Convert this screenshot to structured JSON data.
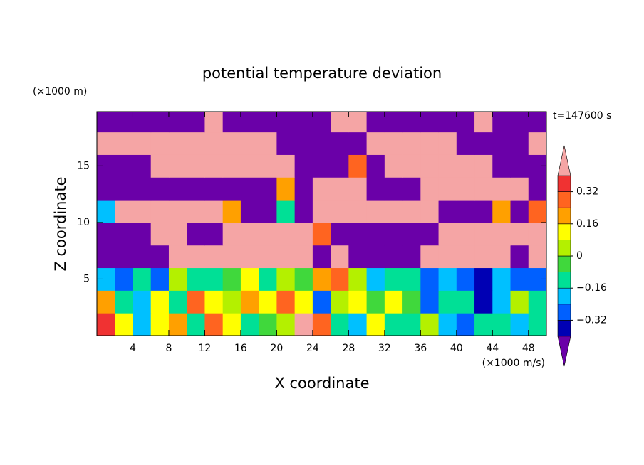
{
  "chart_data": {
    "type": "contour",
    "title": "potential temperature deviation",
    "y_unit": "(×1000 m)",
    "ylabel": "Z coordinate",
    "xlabel": "X coordinate",
    "x_unit": "(×1000 m/s)",
    "annotation": "t=147600 s",
    "xlim": [
      0,
      50
    ],
    "ylim": [
      0,
      19.8
    ],
    "xticks": [
      4,
      8,
      12,
      16,
      20,
      24,
      28,
      32,
      36,
      40,
      44,
      48
    ],
    "yticks": [
      5,
      10,
      15
    ],
    "x": [
      1,
      3,
      5,
      7,
      9,
      11,
      13,
      15,
      17,
      19,
      21,
      23,
      25,
      27,
      29,
      31,
      33,
      35,
      37,
      39,
      41,
      43,
      45,
      47,
      49
    ],
    "y": [
      1,
      3,
      5,
      7,
      9,
      11,
      13,
      15,
      17,
      19
    ],
    "z": [
      [
        0.35,
        0.1,
        -0.2,
        0.1,
        0.2,
        -0.1,
        0.3,
        0.15,
        -0.1,
        -0.05,
        0.05,
        0.4,
        0.3,
        -0.1,
        -0.2,
        0.1,
        -0.1,
        -0.15,
        0.05,
        -0.2,
        -0.25,
        -0.1,
        -0.15,
        -0.2,
        -0.1
      ],
      [
        0.2,
        -0.1,
        -0.2,
        0.15,
        -0.1,
        0.25,
        0.1,
        0.05,
        0.2,
        0.15,
        0.3,
        0.1,
        -0.3,
        0.05,
        0.1,
        -0.05,
        0.15,
        -0.05,
        -0.3,
        -0.1,
        -0.15,
        -0.35,
        -0.2,
        0.05,
        -0.15
      ],
      [
        -0.2,
        -0.25,
        -0.1,
        -0.3,
        0.05,
        -0.1,
        -0.15,
        -0.05,
        0.1,
        -0.1,
        0.0,
        -0.05,
        0.2,
        0.3,
        0.05,
        -0.2,
        -0.1,
        -0.15,
        -0.3,
        -0.2,
        -0.25,
        -0.35,
        -0.2,
        -0.3,
        -0.25
      ],
      [
        -0.5,
        -0.5,
        -0.5,
        -0.5,
        0.5,
        0.5,
        0.5,
        0.5,
        0.5,
        0.5,
        0.5,
        0.5,
        -0.5,
        0.5,
        -0.5,
        -0.5,
        -0.5,
        -0.5,
        0.5,
        0.5,
        0.5,
        0.5,
        0.5,
        -0.5,
        0.5
      ],
      [
        -0.5,
        -0.5,
        -0.5,
        0.5,
        0.5,
        -0.5,
        -0.5,
        0.5,
        0.5,
        0.5,
        0.5,
        0.5,
        0.3,
        -0.5,
        -0.5,
        -0.5,
        -0.5,
        -0.5,
        -0.5,
        0.5,
        0.5,
        0.5,
        0.5,
        0.5,
        0.5
      ],
      [
        -0.2,
        0.5,
        0.5,
        0.5,
        0.5,
        0.5,
        0.5,
        0.2,
        -0.5,
        -0.5,
        -0.1,
        -0.5,
        0.5,
        0.5,
        0.5,
        0.5,
        0.5,
        0.5,
        0.5,
        -0.5,
        -0.5,
        -0.5,
        0.2,
        -0.5,
        0.3
      ],
      [
        -0.5,
        -0.5,
        -0.5,
        -0.5,
        -0.5,
        -0.5,
        -0.5,
        -0.5,
        -0.5,
        -0.5,
        0.2,
        -0.5,
        0.5,
        0.5,
        0.5,
        -0.5,
        -0.5,
        -0.5,
        0.5,
        0.5,
        0.5,
        0.5,
        0.5,
        0.5,
        -0.5
      ],
      [
        -0.5,
        -0.5,
        -0.5,
        0.5,
        0.5,
        0.5,
        0.5,
        0.5,
        0.5,
        0.5,
        0.5,
        -0.5,
        -0.5,
        -0.5,
        0.3,
        -0.5,
        0.5,
        0.5,
        0.5,
        0.5,
        0.5,
        0.5,
        -0.5,
        -0.5,
        -0.5
      ],
      [
        0.5,
        0.5,
        0.5,
        0.5,
        0.5,
        0.5,
        0.5,
        0.5,
        0.5,
        0.5,
        -0.5,
        -0.5,
        -0.5,
        -0.5,
        -0.5,
        0.5,
        0.5,
        0.5,
        0.5,
        0.5,
        -0.5,
        -0.5,
        -0.5,
        -0.5,
        0.5
      ],
      [
        -0.5,
        -0.5,
        -0.5,
        -0.5,
        -0.5,
        -0.5,
        0.5,
        -0.5,
        -0.5,
        -0.5,
        -0.5,
        -0.5,
        -0.5,
        0.5,
        0.5,
        -0.5,
        -0.5,
        -0.5,
        -0.5,
        -0.5,
        -0.5,
        0.5,
        -0.5,
        -0.5,
        -0.5
      ]
    ],
    "levels": [
      -0.4,
      -0.32,
      -0.24,
      -0.16,
      -0.08,
      0,
      0.08,
      0.16,
      0.24,
      0.32,
      0.4
    ],
    "colors": [
      "#6a00a8",
      "#0000b4",
      "#0060ff",
      "#00c0ff",
      "#00e096",
      "#40d83c",
      "#b4f000",
      "#ffff00",
      "#ffa000",
      "#ff6420",
      "#f03232",
      "#f5a5a5"
    ],
    "colorbar_ticks": [
      {
        "value": -0.32,
        "label": "−0.32"
      },
      {
        "value": -0.16,
        "label": "−0.16"
      },
      0,
      0.16,
      0.32
    ]
  }
}
